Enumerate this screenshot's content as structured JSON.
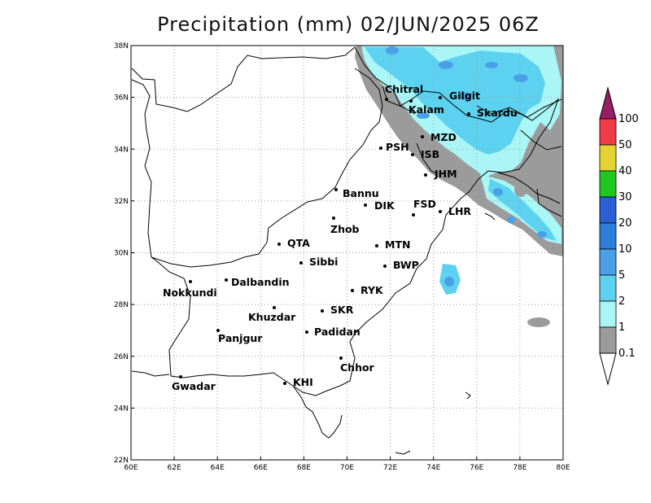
{
  "title": "Precipitation (mm) 02/JUN/2025 06Z",
  "x_ticks": [
    "60E",
    "62E",
    "64E",
    "66E",
    "68E",
    "70E",
    "72E",
    "74E",
    "76E",
    "78E",
    "80E"
  ],
  "y_ticks": [
    "22N",
    "24N",
    "26N",
    "28N",
    "30N",
    "32N",
    "34N",
    "36N",
    "38N"
  ],
  "colorbar": {
    "labels": [
      "100",
      "50",
      "40",
      "30",
      "20",
      "10",
      "5",
      "2",
      "1",
      "0.1"
    ],
    "colors": [
      "#f03c46",
      "#e6d232",
      "#1ec81e",
      "#2a5fd6",
      "#2e7fd8",
      "#4aa0e8",
      "#5cd2f0",
      "#aaf5f5",
      "#9b9b9b"
    ],
    "top_arrow_color": "#961e64"
  },
  "cities": [
    {
      "name": "Chitral"
    },
    {
      "name": "Gilgit"
    },
    {
      "name": "Kalam"
    },
    {
      "name": "Skardu"
    },
    {
      "name": "MZD"
    },
    {
      "name": "PSH"
    },
    {
      "name": "ISB"
    },
    {
      "name": "JHM"
    },
    {
      "name": "Bannu"
    },
    {
      "name": "DIK"
    },
    {
      "name": "FSD"
    },
    {
      "name": "LHR"
    },
    {
      "name": "Zhob"
    },
    {
      "name": "QTA"
    },
    {
      "name": "MTN"
    },
    {
      "name": "Sibbi"
    },
    {
      "name": "BWP"
    },
    {
      "name": "Dalbandin"
    },
    {
      "name": "Nokkundi"
    },
    {
      "name": "RYK"
    },
    {
      "name": "Khuzdar"
    },
    {
      "name": "SKR"
    },
    {
      "name": "Panjgur"
    },
    {
      "name": "Padidan"
    },
    {
      "name": "Chhor"
    },
    {
      "name": "KHI"
    },
    {
      "name": "Gwadar"
    }
  ]
}
